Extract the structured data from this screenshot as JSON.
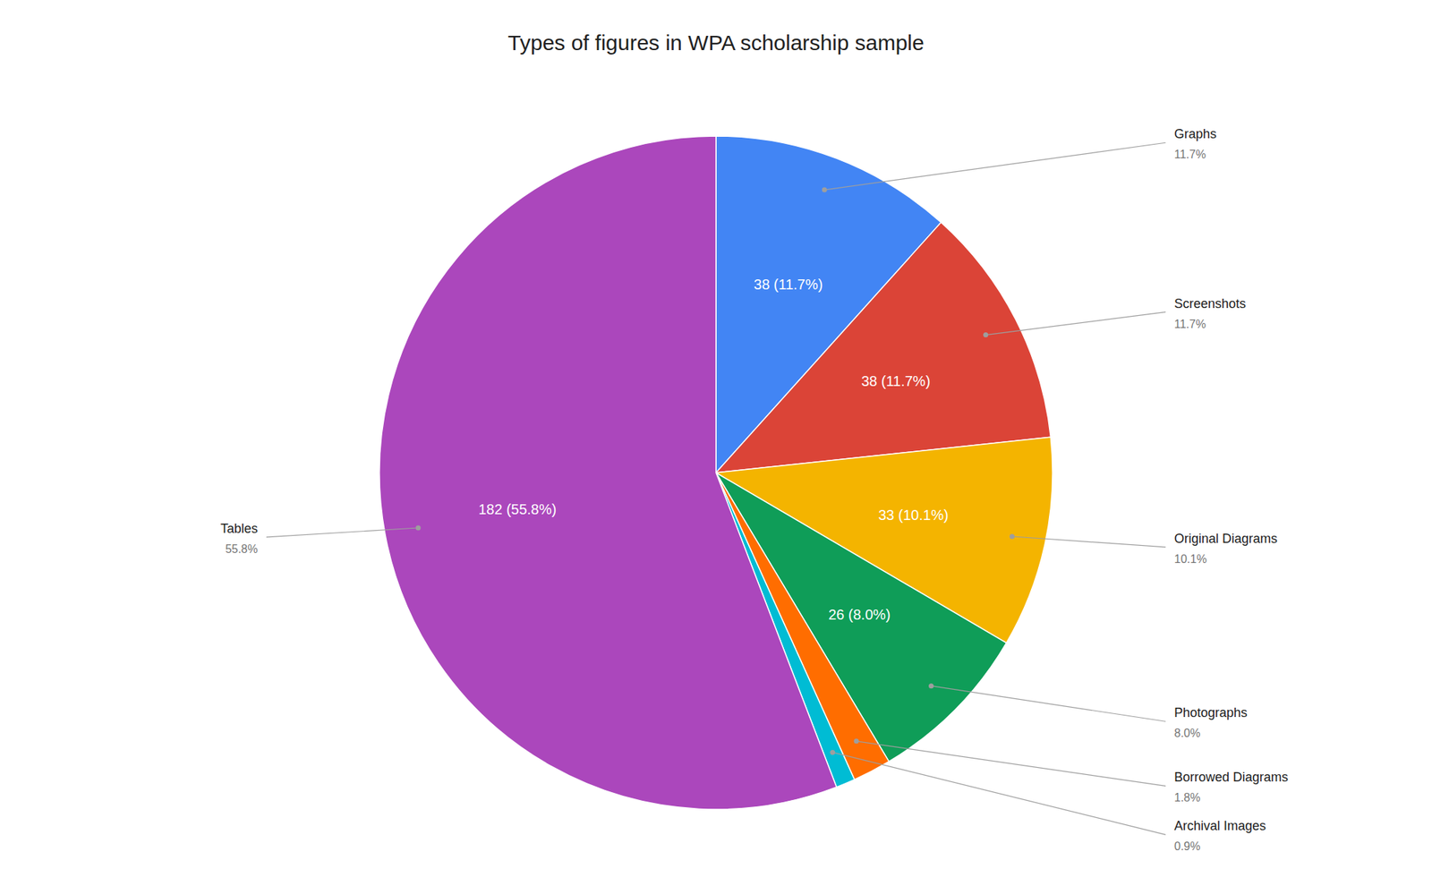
{
  "chart_data": {
    "type": "pie",
    "title": "Types of figures in WPA scholarship sample",
    "categories": [
      "Graphs",
      "Screenshots",
      "Original Diagrams",
      "Photographs",
      "Borrowed Diagrams",
      "Archival Images",
      "Tables"
    ],
    "values": [
      38,
      38,
      33,
      26,
      6,
      3,
      182
    ],
    "value_labels": [
      "38 (11.7%)",
      "38 (11.7%)",
      "33 (10.1%)",
      "26 (8.0%)",
      null,
      null,
      "182 (55.8%)"
    ],
    "percentage_labels": [
      "11.7%",
      "11.7%",
      "10.1%",
      "8.0%",
      "1.8%",
      "0.9%",
      "55.8%"
    ],
    "colors": [
      "#4285F4",
      "#DB4437",
      "#F4B400",
      "#0F9D58",
      "#FF6D00",
      "#00BCD4",
      "#AB47BC"
    ],
    "data_labels": true
  }
}
